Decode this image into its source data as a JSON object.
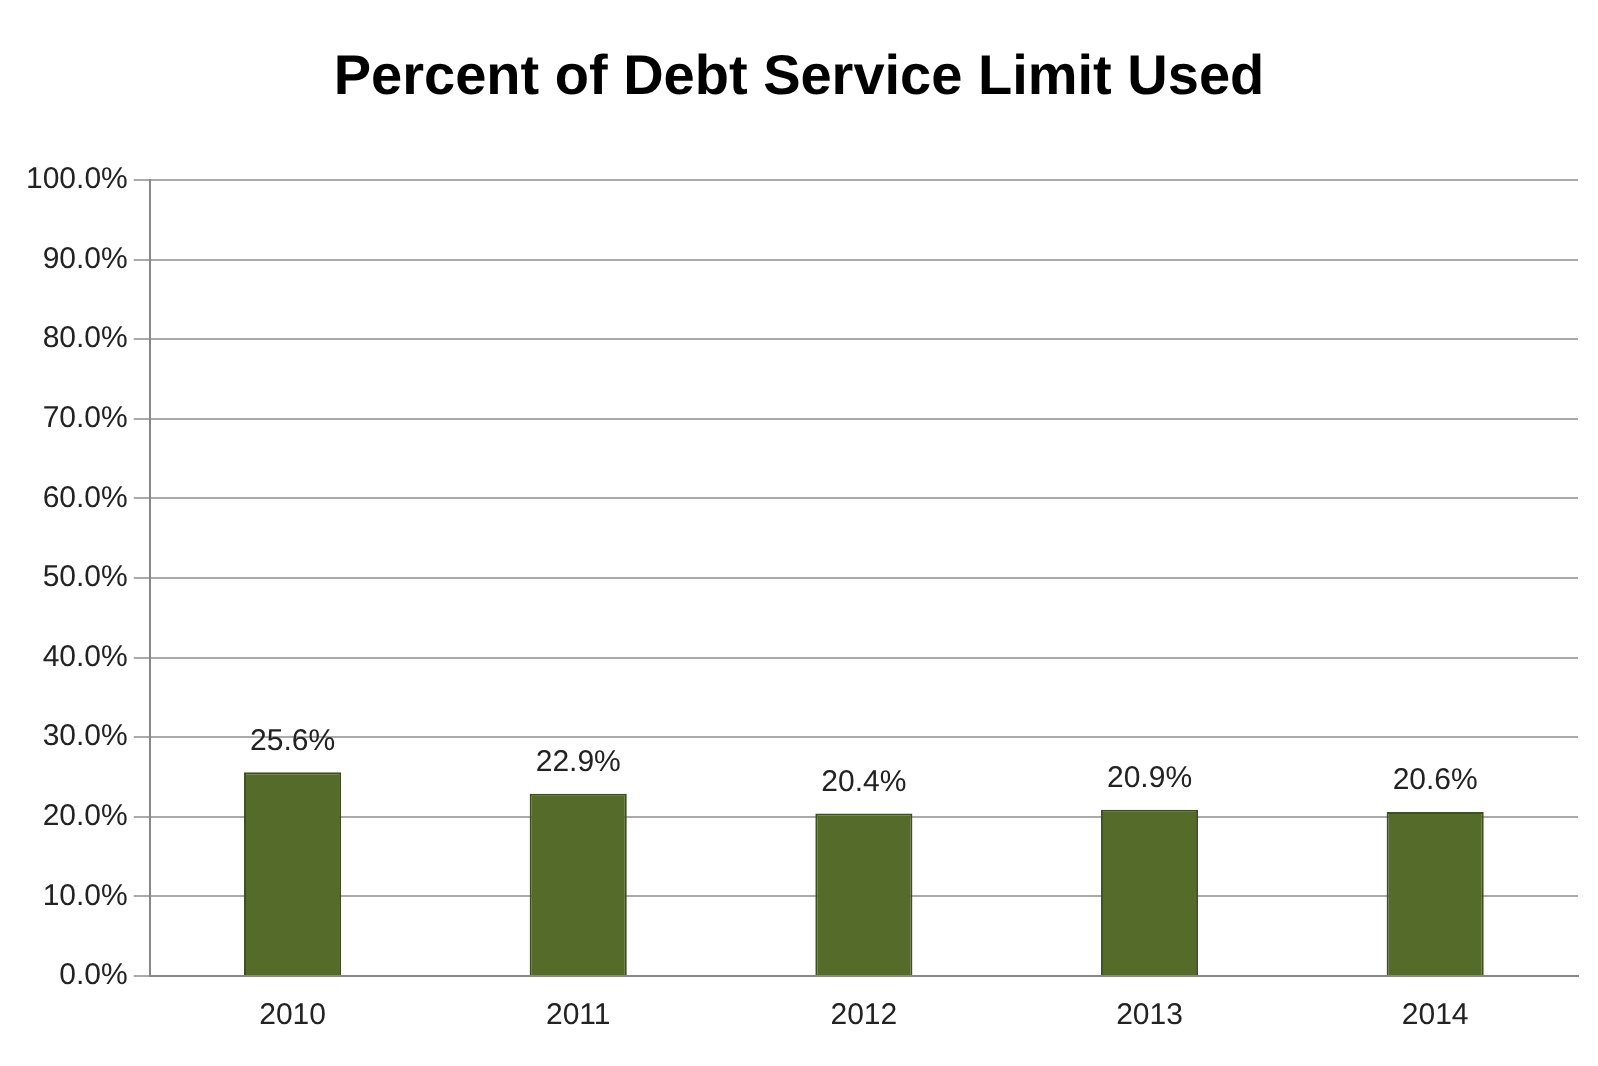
{
  "chart_data": {
    "type": "bar",
    "title": "Percent of Debt Service Limit Used",
    "categories": [
      "2010",
      "2011",
      "2012",
      "2013",
      "2014"
    ],
    "values": [
      25.6,
      22.9,
      20.4,
      20.9,
      20.6
    ],
    "value_labels": [
      "25.6%",
      "22.9%",
      "20.4%",
      "20.9%",
      "20.6%"
    ],
    "color": "#556b2a",
    "ylim": [
      0,
      100
    ],
    "yticks": [
      {
        "value": 0,
        "label": "0.0%"
      },
      {
        "value": 10,
        "label": "10.0%"
      },
      {
        "value": 20,
        "label": "20.0%"
      },
      {
        "value": 30,
        "label": "30.0%"
      },
      {
        "value": 40,
        "label": "40.0%"
      },
      {
        "value": 50,
        "label": "50.0%"
      },
      {
        "value": 60,
        "label": "60.0%"
      },
      {
        "value": 70,
        "label": "70.0%"
      },
      {
        "value": 80,
        "label": "80.0%"
      },
      {
        "value": 90,
        "label": "90.0%"
      },
      {
        "value": 100,
        "label": "100.0%"
      }
    ],
    "grid": "y"
  }
}
